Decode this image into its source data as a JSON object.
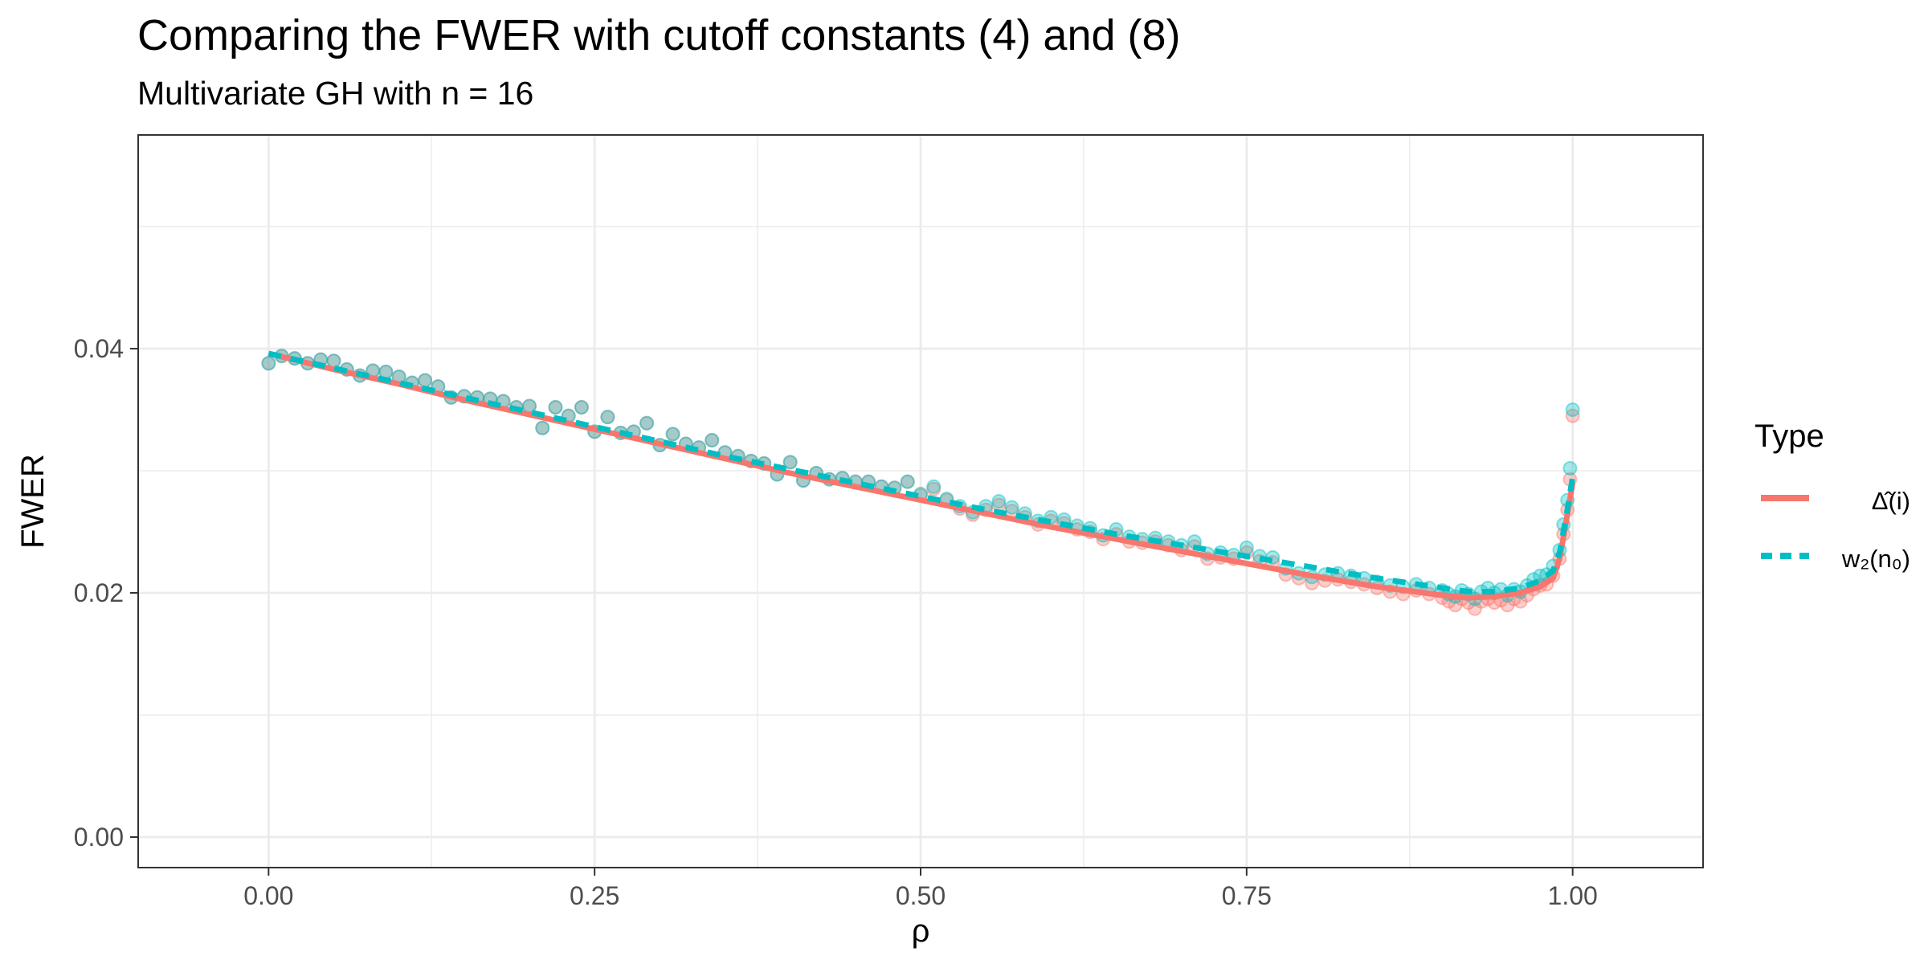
{
  "chart_data": {
    "type": "line",
    "title": "Comparing the FWER with cutoff constants (4) and (8)",
    "subtitle": "Multivariate GH with n = 16",
    "xlabel": "ρ",
    "ylabel": "FWER",
    "xlim": [
      -0.1,
      1.1
    ],
    "ylim": [
      -0.0025,
      0.0575
    ],
    "x_ticks": [
      0.0,
      0.25,
      0.5,
      0.75,
      1.0
    ],
    "x_tick_labels": [
      "0.00",
      "0.25",
      "0.50",
      "0.75",
      "1.00"
    ],
    "y_ticks": [
      0.0,
      0.02,
      0.04
    ],
    "y_tick_labels": [
      "0.00",
      "0.02",
      "0.04"
    ],
    "grid": true,
    "legend": {
      "title": "Type",
      "position": "right"
    },
    "series": [
      {
        "name": "Δ̂(i)",
        "color": "#F8766D",
        "line_style": "solid",
        "x": [
          0.0,
          0.05,
          0.1,
          0.15,
          0.2,
          0.25,
          0.3,
          0.35,
          0.4,
          0.45,
          0.5,
          0.55,
          0.6,
          0.65,
          0.7,
          0.75,
          0.8,
          0.85,
          0.9,
          0.92,
          0.94,
          0.96,
          0.975,
          0.985,
          0.99,
          0.995,
          1.0
        ],
        "y": [
          0.0396,
          0.0383,
          0.0371,
          0.0358,
          0.0346,
          0.0334,
          0.0322,
          0.031,
          0.0298,
          0.0287,
          0.0276,
          0.0265,
          0.0254,
          0.0244,
          0.0234,
          0.0224,
          0.0214,
          0.0205,
          0.0198,
          0.0196,
          0.0197,
          0.02,
          0.0205,
          0.0212,
          0.0228,
          0.0258,
          0.029
        ],
        "points_x": [
          0.0,
          0.01,
          0.02,
          0.03,
          0.04,
          0.05,
          0.06,
          0.07,
          0.08,
          0.09,
          0.1,
          0.11,
          0.12,
          0.13,
          0.14,
          0.15,
          0.16,
          0.17,
          0.18,
          0.19,
          0.2,
          0.21,
          0.22,
          0.23,
          0.24,
          0.25,
          0.26,
          0.27,
          0.28,
          0.29,
          0.3,
          0.31,
          0.32,
          0.33,
          0.34,
          0.35,
          0.36,
          0.37,
          0.38,
          0.39,
          0.4,
          0.41,
          0.42,
          0.43,
          0.44,
          0.45,
          0.46,
          0.47,
          0.48,
          0.49,
          0.5,
          0.51,
          0.52,
          0.53,
          0.54,
          0.55,
          0.56,
          0.57,
          0.58,
          0.59,
          0.6,
          0.61,
          0.62,
          0.63,
          0.64,
          0.65,
          0.66,
          0.67,
          0.68,
          0.69,
          0.7,
          0.71,
          0.72,
          0.73,
          0.74,
          0.75,
          0.76,
          0.77,
          0.78,
          0.79,
          0.8,
          0.81,
          0.82,
          0.83,
          0.84,
          0.85,
          0.86,
          0.87,
          0.88,
          0.89,
          0.9,
          0.905,
          0.91,
          0.915,
          0.92,
          0.925,
          0.93,
          0.935,
          0.94,
          0.945,
          0.95,
          0.955,
          0.96,
          0.965,
          0.97,
          0.975,
          0.98,
          0.985,
          0.99,
          0.993,
          0.996,
          0.998,
          1.0
        ],
        "points_y": [
          0.0388,
          0.0394,
          0.0392,
          0.0388,
          0.0391,
          0.039,
          0.0383,
          0.0378,
          0.0382,
          0.0381,
          0.0377,
          0.0372,
          0.0374,
          0.0369,
          0.036,
          0.0361,
          0.036,
          0.0359,
          0.0357,
          0.0352,
          0.0353,
          0.0335,
          0.0352,
          0.0345,
          0.0352,
          0.0332,
          0.0344,
          0.0331,
          0.0332,
          0.0339,
          0.0321,
          0.033,
          0.0322,
          0.0319,
          0.0325,
          0.0315,
          0.0312,
          0.0308,
          0.0306,
          0.0297,
          0.0307,
          0.0292,
          0.0298,
          0.0293,
          0.0294,
          0.0291,
          0.0291,
          0.0287,
          0.0286,
          0.0291,
          0.028,
          0.0285,
          0.0276,
          0.0269,
          0.0264,
          0.0268,
          0.0272,
          0.0267,
          0.0262,
          0.0256,
          0.0259,
          0.0257,
          0.0252,
          0.025,
          0.0244,
          0.0248,
          0.0242,
          0.0241,
          0.0242,
          0.0239,
          0.0235,
          0.0238,
          0.0228,
          0.0229,
          0.0228,
          0.0233,
          0.0226,
          0.0225,
          0.0215,
          0.0212,
          0.0208,
          0.021,
          0.0211,
          0.0209,
          0.0207,
          0.0204,
          0.0201,
          0.0199,
          0.0202,
          0.0199,
          0.0196,
          0.0193,
          0.019,
          0.0195,
          0.0192,
          0.0187,
          0.0193,
          0.0195,
          0.0192,
          0.0194,
          0.019,
          0.0195,
          0.0193,
          0.0198,
          0.0203,
          0.0206,
          0.0207,
          0.0214,
          0.0228,
          0.0248,
          0.0268,
          0.0293,
          0.0345
        ]
      },
      {
        "name": "w₂(n₀)",
        "color": "#00BFC4",
        "line_style": "dashed",
        "x": [
          0.0,
          0.05,
          0.1,
          0.15,
          0.2,
          0.25,
          0.3,
          0.35,
          0.4,
          0.45,
          0.5,
          0.55,
          0.6,
          0.65,
          0.7,
          0.75,
          0.8,
          0.85,
          0.9,
          0.92,
          0.94,
          0.96,
          0.975,
          0.985,
          0.99,
          0.995,
          1.0
        ],
        "y": [
          0.0396,
          0.0384,
          0.0372,
          0.036,
          0.0348,
          0.0336,
          0.0324,
          0.0312,
          0.0301,
          0.029,
          0.0279,
          0.0268,
          0.0258,
          0.0248,
          0.0239,
          0.023,
          0.0221,
          0.0212,
          0.0204,
          0.0201,
          0.0201,
          0.0204,
          0.021,
          0.0218,
          0.0233,
          0.0262,
          0.0295
        ],
        "points_x": [
          0.0,
          0.01,
          0.02,
          0.03,
          0.04,
          0.05,
          0.06,
          0.07,
          0.08,
          0.09,
          0.1,
          0.11,
          0.12,
          0.13,
          0.14,
          0.15,
          0.16,
          0.17,
          0.18,
          0.19,
          0.2,
          0.21,
          0.22,
          0.23,
          0.24,
          0.25,
          0.26,
          0.27,
          0.28,
          0.29,
          0.3,
          0.31,
          0.32,
          0.33,
          0.34,
          0.35,
          0.36,
          0.37,
          0.38,
          0.39,
          0.4,
          0.41,
          0.42,
          0.43,
          0.44,
          0.45,
          0.46,
          0.47,
          0.48,
          0.49,
          0.5,
          0.51,
          0.52,
          0.53,
          0.54,
          0.55,
          0.56,
          0.57,
          0.58,
          0.59,
          0.6,
          0.61,
          0.62,
          0.63,
          0.64,
          0.65,
          0.66,
          0.67,
          0.68,
          0.69,
          0.7,
          0.71,
          0.72,
          0.73,
          0.74,
          0.75,
          0.76,
          0.77,
          0.78,
          0.79,
          0.8,
          0.81,
          0.82,
          0.83,
          0.84,
          0.85,
          0.86,
          0.87,
          0.88,
          0.89,
          0.9,
          0.905,
          0.91,
          0.915,
          0.92,
          0.925,
          0.93,
          0.935,
          0.94,
          0.945,
          0.95,
          0.955,
          0.96,
          0.965,
          0.97,
          0.975,
          0.98,
          0.985,
          0.99,
          0.993,
          0.996,
          0.998,
          1.0
        ],
        "points_y": [
          0.0388,
          0.0394,
          0.0392,
          0.0388,
          0.0391,
          0.039,
          0.0383,
          0.0378,
          0.0382,
          0.0381,
          0.0377,
          0.0372,
          0.0374,
          0.0369,
          0.036,
          0.0361,
          0.036,
          0.0359,
          0.0357,
          0.0352,
          0.0353,
          0.0335,
          0.0352,
          0.0345,
          0.0352,
          0.0332,
          0.0344,
          0.0331,
          0.0332,
          0.0339,
          0.0321,
          0.033,
          0.0322,
          0.0319,
          0.0325,
          0.0315,
          0.0312,
          0.0308,
          0.0306,
          0.0297,
          0.0307,
          0.0292,
          0.0298,
          0.0293,
          0.0294,
          0.0291,
          0.0291,
          0.0287,
          0.0286,
          0.0291,
          0.0281,
          0.0287,
          0.0277,
          0.0271,
          0.0266,
          0.0271,
          0.0275,
          0.027,
          0.0265,
          0.0259,
          0.0262,
          0.026,
          0.0255,
          0.0253,
          0.0247,
          0.0252,
          0.0246,
          0.0244,
          0.0245,
          0.0242,
          0.0239,
          0.0242,
          0.0232,
          0.0233,
          0.0231,
          0.0237,
          0.023,
          0.0229,
          0.022,
          0.0216,
          0.0213,
          0.0215,
          0.0216,
          0.0214,
          0.0212,
          0.0209,
          0.0206,
          0.0205,
          0.0207,
          0.0204,
          0.0202,
          0.0199,
          0.0197,
          0.0202,
          0.0199,
          0.0195,
          0.0201,
          0.0204,
          0.02,
          0.0203,
          0.0198,
          0.0203,
          0.0201,
          0.0206,
          0.0211,
          0.0214,
          0.0215,
          0.0222,
          0.0235,
          0.0256,
          0.0276,
          0.0302,
          0.035
        ]
      }
    ]
  }
}
